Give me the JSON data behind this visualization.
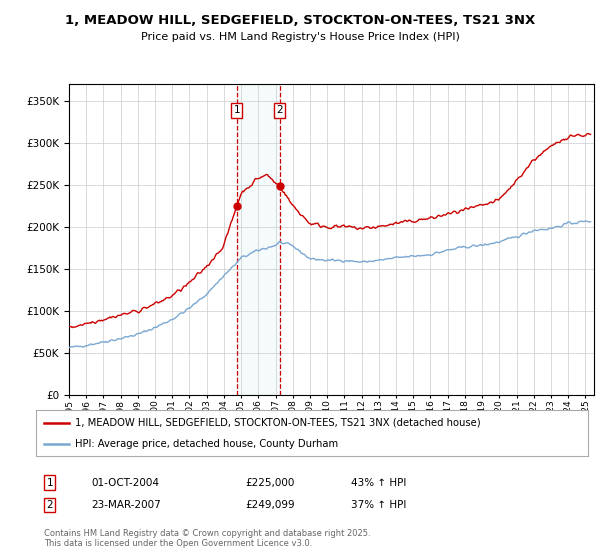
{
  "title": "1, MEADOW HILL, SEDGEFIELD, STOCKTON-ON-TEES, TS21 3NX",
  "subtitle": "Price paid vs. HM Land Registry's House Price Index (HPI)",
  "legend_line1": "1, MEADOW HILL, SEDGEFIELD, STOCKTON-ON-TEES, TS21 3NX (detached house)",
  "legend_line2": "HPI: Average price, detached house, County Durham",
  "annotation1_label": "1",
  "annotation1_date": "01-OCT-2004",
  "annotation1_price": "£225,000",
  "annotation1_hpi": "43% ↑ HPI",
  "annotation2_label": "2",
  "annotation2_date": "23-MAR-2007",
  "annotation2_price": "£249,099",
  "annotation2_hpi": "37% ↑ HPI",
  "footer": "Contains HM Land Registry data © Crown copyright and database right 2025.\nThis data is licensed under the Open Government Licence v3.0.",
  "background_color": "#ffffff",
  "plot_bg_color": "#ffffff",
  "grid_color": "#cccccc",
  "line1_color": "#cc0000",
  "line2_color": "#7aa8d2",
  "sale1_x": 2004.75,
  "sale2_x": 2007.23,
  "ylim_min": 0,
  "ylim_max": 370000,
  "xlim_min": 1995,
  "xlim_max": 2025.5,
  "hpi_knots_x": [
    1995,
    1996,
    1997,
    1998,
    1999,
    2000,
    2001,
    2002,
    2003,
    2004,
    2004.75,
    2005,
    2006,
    2007,
    2007.23,
    2008,
    2009,
    2010,
    2011,
    2012,
    2013,
    2014,
    2015,
    2016,
    2017,
    2018,
    2019,
    2020,
    2021,
    2022,
    2023,
    2024,
    2025.3
  ],
  "hpi_knots_y": [
    56000,
    59000,
    63000,
    67000,
    72000,
    80000,
    90000,
    103000,
    120000,
    142000,
    157000,
    163000,
    172000,
    178000,
    181800,
    177000,
    162000,
    160000,
    160000,
    158000,
    160000,
    163000,
    165000,
    167000,
    172000,
    176000,
    178000,
    182000,
    188000,
    196000,
    198000,
    204000,
    207000
  ],
  "prop_knots_x": [
    1995,
    1996,
    1997,
    1998,
    1999,
    2000,
    2001,
    2002,
    2003,
    2004,
    2004.75,
    2005,
    2006,
    2006.5,
    2007,
    2007.23,
    2008,
    2009,
    2010,
    2011,
    2012,
    2013,
    2014,
    2015,
    2016,
    2017,
    2018,
    2019,
    2020,
    2021,
    2022,
    2023,
    2024,
    2025.3
  ],
  "prop_knots_y": [
    80000,
    85000,
    90000,
    95000,
    100000,
    108000,
    118000,
    133000,
    153000,
    178000,
    225000,
    240000,
    258000,
    262000,
    252000,
    249099,
    225000,
    204000,
    200000,
    200000,
    198000,
    200000,
    204000,
    207000,
    210000,
    215000,
    220000,
    225000,
    232000,
    255000,
    280000,
    295000,
    308000,
    310000
  ],
  "noise_seed": 42,
  "hpi_noise_scale": 1200,
  "prop_noise_scale": 1800
}
